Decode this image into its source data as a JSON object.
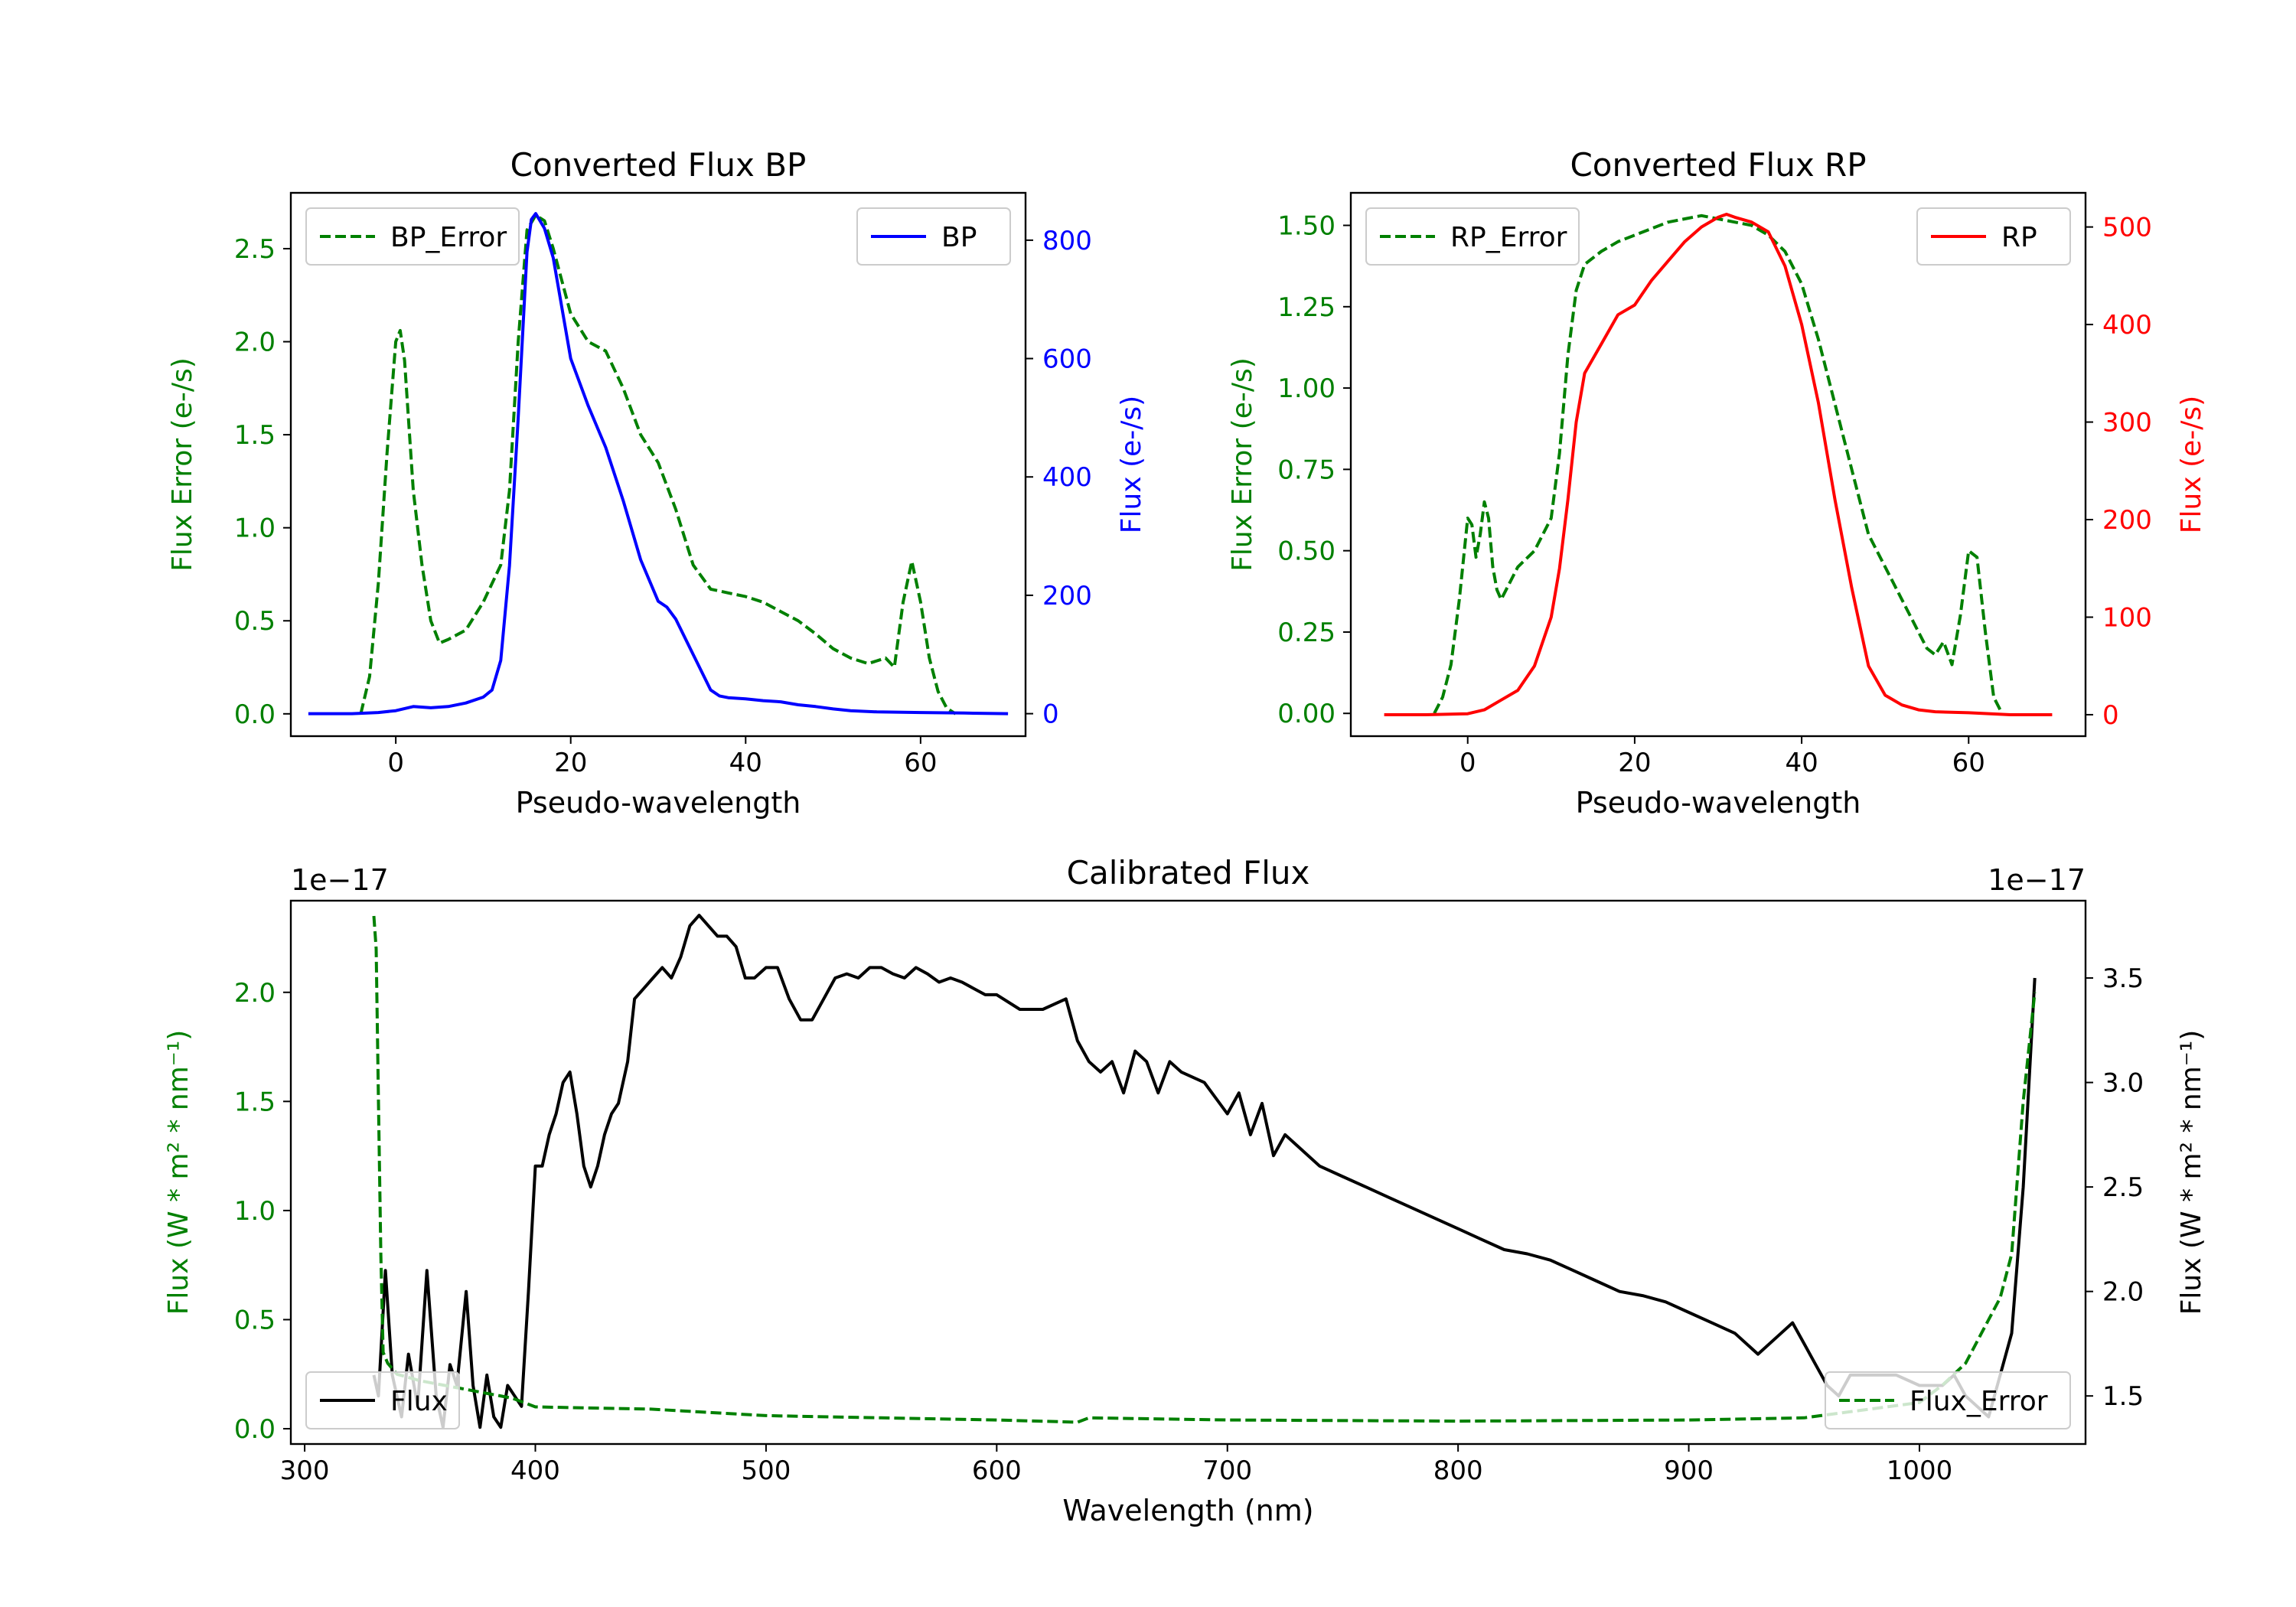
{
  "colors": {
    "green": "#008000",
    "blue": "#0000ff",
    "red": "#ff0000",
    "black": "#000000"
  },
  "chart_data": [
    {
      "id": "bp",
      "type": "line",
      "title": "Converted Flux BP",
      "xlabel": "Pseudo-wavelength",
      "ylabel_left": "Flux Error (e-/s)",
      "ylabel_right": "Flux (e-/s)",
      "xlim": [
        -12,
        72
      ],
      "ylim_left": [
        -0.12,
        2.8
      ],
      "ylim_right": [
        -38,
        880
      ],
      "xticks": [
        0,
        20,
        40,
        60
      ],
      "yticks_left": [
        "0.0",
        "0.5",
        "1.0",
        "1.5",
        "2.0",
        "2.5"
      ],
      "yticks_right": [
        "0",
        "200",
        "400",
        "600",
        "800"
      ],
      "legend_left": {
        "label": "BP_Error",
        "position": "upper left"
      },
      "legend_right": {
        "label": "BP",
        "position": "upper right"
      },
      "series": [
        {
          "name": "BP_Error",
          "axis": "left",
          "color": "#008000",
          "dash": true,
          "x": [
            -4,
            -3,
            -2,
            -1,
            0,
            0.5,
            1,
            2,
            3,
            4,
            5,
            6,
            8,
            10,
            12,
            13,
            14,
            15,
            16,
            17,
            18,
            20,
            22,
            24,
            26,
            28,
            30,
            32,
            34,
            36,
            38,
            40,
            42,
            44,
            46,
            48,
            50,
            52,
            54,
            56,
            57,
            58,
            59,
            60,
            61,
            62,
            63,
            64
          ],
          "y": [
            0.0,
            0.2,
            0.7,
            1.4,
            2.0,
            2.06,
            1.9,
            1.2,
            0.8,
            0.5,
            0.38,
            0.4,
            0.45,
            0.6,
            0.8,
            1.2,
            2.0,
            2.6,
            2.68,
            2.65,
            2.5,
            2.15,
            2.0,
            1.95,
            1.75,
            1.5,
            1.35,
            1.1,
            0.8,
            0.67,
            0.65,
            0.63,
            0.6,
            0.55,
            0.5,
            0.43,
            0.35,
            0.3,
            0.27,
            0.3,
            0.25,
            0.6,
            0.82,
            0.6,
            0.3,
            0.12,
            0.03,
            0.0
          ]
        },
        {
          "name": "BP",
          "axis": "right",
          "color": "#0000ff",
          "dash": false,
          "x": [
            -10,
            -5,
            -2,
            0,
            2,
            4,
            6,
            8,
            10,
            11,
            12,
            13,
            14,
            15,
            15.5,
            16,
            17,
            18,
            20,
            22,
            24,
            26,
            28,
            30,
            31,
            32,
            34,
            36,
            37,
            38,
            40,
            42,
            44,
            46,
            48,
            50,
            52,
            55,
            60,
            65,
            70
          ],
          "y": [
            0,
            0,
            2,
            5,
            12,
            10,
            12,
            18,
            28,
            40,
            90,
            250,
            500,
            780,
            835,
            845,
            820,
            770,
            600,
            520,
            450,
            360,
            260,
            190,
            180,
            160,
            100,
            40,
            30,
            27,
            25,
            22,
            20,
            15,
            12,
            8,
            5,
            3,
            2,
            1,
            0
          ]
        }
      ]
    },
    {
      "id": "rp",
      "type": "line",
      "title": "Converted Flux RP",
      "xlabel": "Pseudo-wavelength",
      "ylabel_left": "Flux Error (e-/s)",
      "ylabel_right": "Flux (e-/s)",
      "xlim": [
        -14,
        74
      ],
      "ylim_left": [
        -0.07,
        1.6
      ],
      "ylim_right": [
        -22,
        535
      ],
      "xticks": [
        0,
        20,
        40,
        60
      ],
      "yticks_left": [
        "0.00",
        "0.25",
        "0.50",
        "0.75",
        "1.00",
        "1.25",
        "1.50"
      ],
      "yticks_right": [
        "0",
        "100",
        "200",
        "300",
        "400",
        "500"
      ],
      "legend_left": {
        "label": "RP_Error",
        "position": "upper left"
      },
      "legend_right": {
        "label": "RP",
        "position": "upper right"
      },
      "series": [
        {
          "name": "RP_Error",
          "axis": "left",
          "color": "#008000",
          "dash": true,
          "x": [
            -4,
            -3,
            -2,
            -1,
            0,
            0.5,
            1,
            1.5,
            2,
            2.5,
            3,
            3.5,
            4,
            5,
            6,
            8,
            10,
            11,
            12,
            13,
            14,
            16,
            18,
            20,
            22,
            24,
            26,
            28,
            30,
            32,
            34,
            36,
            38,
            40,
            42,
            44,
            46,
            48,
            50,
            52,
            54,
            55,
            56,
            57,
            58,
            59,
            60,
            61,
            62,
            63,
            64
          ],
          "y": [
            0.0,
            0.05,
            0.15,
            0.35,
            0.6,
            0.58,
            0.48,
            0.55,
            0.65,
            0.6,
            0.45,
            0.38,
            0.35,
            0.4,
            0.45,
            0.5,
            0.6,
            0.8,
            1.1,
            1.3,
            1.38,
            1.42,
            1.45,
            1.47,
            1.49,
            1.51,
            1.52,
            1.53,
            1.52,
            1.51,
            1.5,
            1.47,
            1.42,
            1.32,
            1.15,
            0.95,
            0.75,
            0.55,
            0.45,
            0.35,
            0.25,
            0.2,
            0.18,
            0.22,
            0.15,
            0.3,
            0.5,
            0.48,
            0.25,
            0.05,
            0.0
          ]
        },
        {
          "name": "RP",
          "axis": "right",
          "color": "#ff0000",
          "dash": false,
          "x": [
            -10,
            -5,
            0,
            2,
            4,
            6,
            8,
            10,
            11,
            12,
            13,
            14,
            16,
            18,
            20,
            22,
            24,
            26,
            28,
            30,
            31,
            32,
            34,
            36,
            38,
            40,
            42,
            44,
            46,
            48,
            50,
            52,
            54,
            56,
            60,
            65,
            70
          ],
          "y": [
            0,
            0,
            1,
            5,
            15,
            25,
            50,
            100,
            150,
            220,
            300,
            350,
            380,
            410,
            420,
            445,
            465,
            485,
            500,
            510,
            513,
            510,
            505,
            495,
            460,
            400,
            320,
            220,
            130,
            50,
            20,
            10,
            5,
            3,
            2,
            0,
            0
          ]
        }
      ]
    },
    {
      "id": "cal",
      "type": "line",
      "title": "Calibrated Flux",
      "xlabel": "Wavelength (nm)",
      "ylabel_left": "Flux (W * m² * nm⁻¹)",
      "ylabel_right": "Flux (W * m² * nm⁻¹)",
      "offset_left": "1e−17",
      "offset_right": "1e−17",
      "xlim": [
        294,
        1072
      ],
      "ylim_left": [
        -0.07,
        2.42
      ],
      "ylim_right": [
        1.27,
        3.87
      ],
      "xticks": [
        300,
        400,
        500,
        600,
        700,
        800,
        900,
        1000
      ],
      "yticks_left": [
        "0.0",
        "0.5",
        "1.0",
        "1.5",
        "2.0"
      ],
      "yticks_right": [
        "1.5",
        "2.0",
        "2.5",
        "3.0",
        "3.5"
      ],
      "legend_left": {
        "label": "Flux",
        "position": "lower left"
      },
      "legend_right": {
        "label": "Flux_Error",
        "position": "lower right"
      },
      "series": [
        {
          "name": "Flux",
          "axis": "right",
          "color": "#000000",
          "dash": false,
          "x": [
            330,
            332,
            335,
            338,
            342,
            345,
            349,
            353,
            357,
            360,
            363,
            366,
            370,
            373,
            376,
            379,
            382,
            385,
            388,
            391,
            394,
            397,
            400,
            403,
            406,
            409,
            412,
            415,
            418,
            421,
            424,
            427,
            430,
            433,
            436,
            440,
            443,
            447,
            451,
            455,
            459,
            463,
            467,
            471,
            475,
            479,
            483,
            487,
            491,
            495,
            500,
            505,
            510,
            515,
            520,
            525,
            530,
            535,
            540,
            545,
            550,
            555,
            560,
            565,
            570,
            575,
            580,
            585,
            590,
            595,
            600,
            610,
            620,
            630,
            635,
            640,
            645,
            650,
            655,
            660,
            665,
            670,
            675,
            680,
            690,
            700,
            705,
            710,
            715,
            720,
            725,
            730,
            740,
            750,
            760,
            770,
            780,
            790,
            800,
            810,
            820,
            830,
            840,
            850,
            860,
            870,
            880,
            890,
            900,
            910,
            920,
            930,
            940,
            945,
            950,
            955,
            960,
            965,
            970,
            980,
            990,
            1000,
            1010,
            1015,
            1020,
            1025,
            1030,
            1035,
            1040,
            1045,
            1050
          ],
          "y": [
            1.6,
            1.5,
            2.1,
            1.6,
            1.4,
            1.7,
            1.45,
            2.1,
            1.5,
            1.35,
            1.65,
            1.55,
            2.0,
            1.55,
            1.35,
            1.6,
            1.4,
            1.35,
            1.55,
            1.5,
            1.45,
            2.0,
            2.6,
            2.6,
            2.75,
            2.85,
            3.0,
            3.05,
            2.85,
            2.6,
            2.5,
            2.6,
            2.75,
            2.85,
            2.9,
            3.1,
            3.4,
            3.45,
            3.5,
            3.55,
            3.5,
            3.6,
            3.75,
            3.8,
            3.75,
            3.7,
            3.7,
            3.65,
            3.5,
            3.5,
            3.55,
            3.55,
            3.4,
            3.3,
            3.3,
            3.4,
            3.5,
            3.52,
            3.5,
            3.55,
            3.55,
            3.52,
            3.5,
            3.55,
            3.52,
            3.48,
            3.5,
            3.48,
            3.45,
            3.42,
            3.42,
            3.35,
            3.35,
            3.4,
            3.2,
            3.1,
            3.05,
            3.1,
            2.95,
            3.15,
            3.1,
            2.95,
            3.1,
            3.05,
            3.0,
            2.85,
            2.95,
            2.75,
            2.9,
            2.65,
            2.75,
            2.7,
            2.6,
            2.55,
            2.5,
            2.45,
            2.4,
            2.35,
            2.3,
            2.25,
            2.2,
            2.18,
            2.15,
            2.1,
            2.05,
            2.0,
            1.98,
            1.95,
            1.9,
            1.85,
            1.8,
            1.7,
            1.8,
            1.85,
            1.75,
            1.65,
            1.55,
            1.5,
            1.6,
            1.6,
            1.6,
            1.55,
            1.55,
            1.6,
            1.5,
            1.45,
            1.4,
            1.6,
            1.8,
            2.5,
            3.5
          ]
        },
        {
          "name": "Flux_Error",
          "axis": "left",
          "color": "#008000",
          "dash": true,
          "x": [
            330,
            331,
            332,
            333,
            334,
            336,
            340,
            350,
            360,
            370,
            380,
            390,
            400,
            450,
            500,
            550,
            600,
            635,
            640,
            700,
            800,
            900,
            950,
            1000,
            1010,
            1020,
            1030,
            1035,
            1040,
            1045,
            1050
          ],
          "y": [
            2.35,
            2.2,
            1.5,
            0.8,
            0.35,
            0.3,
            0.25,
            0.22,
            0.2,
            0.18,
            0.16,
            0.14,
            0.1,
            0.09,
            0.06,
            0.05,
            0.04,
            0.03,
            0.05,
            0.04,
            0.035,
            0.04,
            0.05,
            0.12,
            0.2,
            0.3,
            0.5,
            0.6,
            0.8,
            1.5,
            2.0
          ]
        }
      ]
    }
  ]
}
